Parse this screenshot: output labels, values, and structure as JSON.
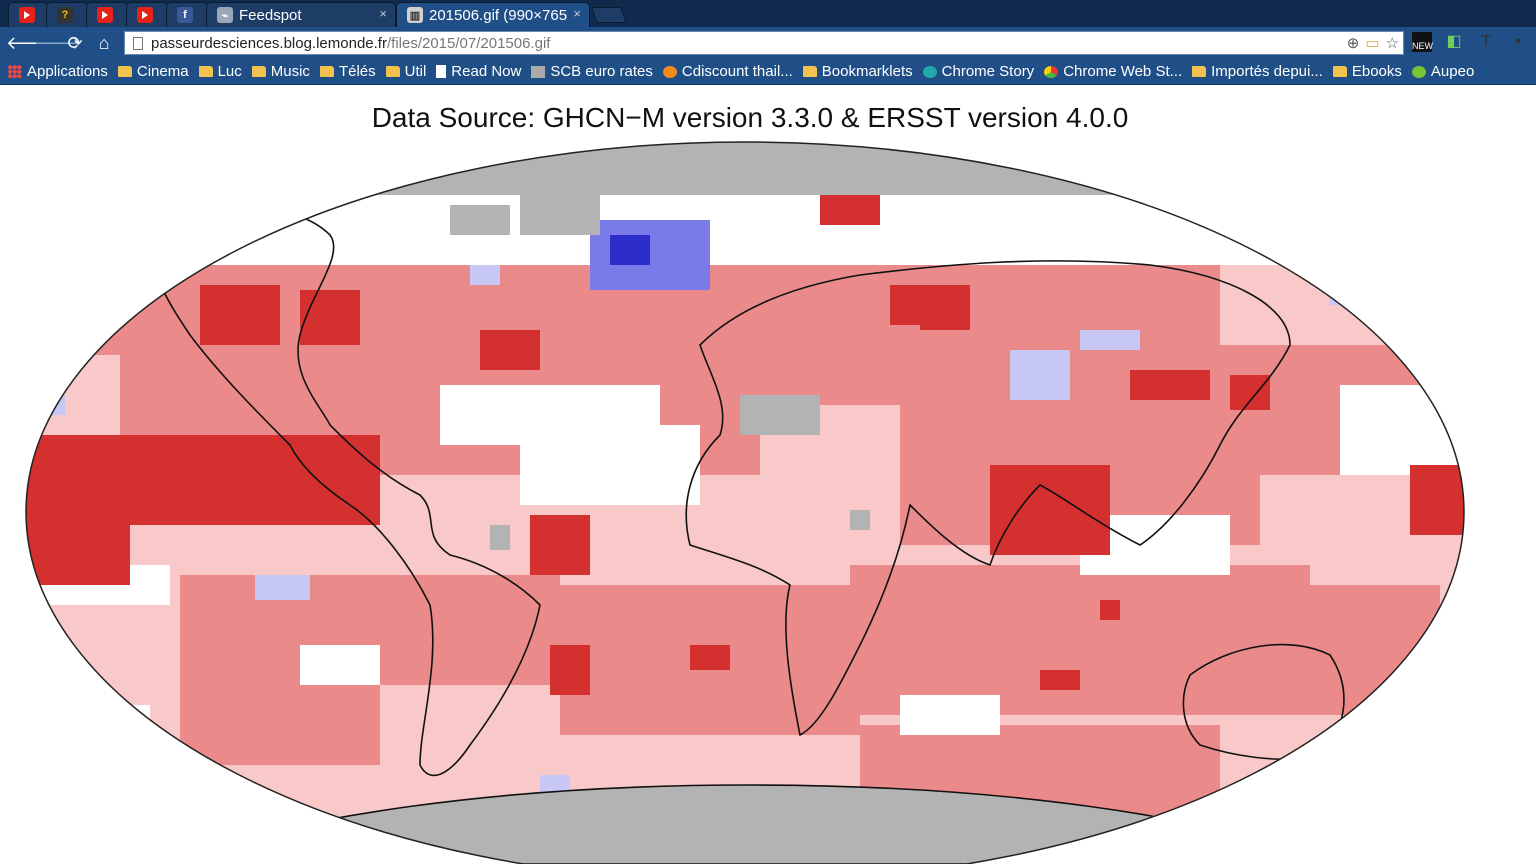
{
  "tabs": [
    {
      "icon": "youtube-icon",
      "title": "",
      "active": false
    },
    {
      "icon": "app-icon",
      "title": "",
      "active": false
    },
    {
      "icon": "youtube-icon",
      "title": "",
      "active": false
    },
    {
      "icon": "youtube-icon",
      "title": "",
      "active": false
    },
    {
      "icon": "facebook-icon",
      "title": "",
      "active": false
    },
    {
      "icon": "rss-icon",
      "title": "Feedspot",
      "active": false
    },
    {
      "icon": "image-icon",
      "title": "201506.gif (990×765",
      "active": true
    }
  ],
  "close_glyph": "×",
  "address": {
    "host": "passeurdesciences.blog.lemonde.fr",
    "path": "/files/2015/07/201506.gif"
  },
  "extension_badge": "NEW",
  "bookmarks": [
    {
      "label": "Applications",
      "icon": "apps-icon"
    },
    {
      "label": "Cinema",
      "icon": "folder-icon"
    },
    {
      "label": "Luc",
      "icon": "folder-icon"
    },
    {
      "label": "Music",
      "icon": "folder-icon"
    },
    {
      "label": "Télés",
      "icon": "folder-icon"
    },
    {
      "label": "Util",
      "icon": "folder-icon"
    },
    {
      "label": "Read Now",
      "icon": "page-icon"
    },
    {
      "label": "SCB euro rates",
      "icon": "scb-icon"
    },
    {
      "label": "Cdiscount thail...",
      "icon": "cdiscount-icon"
    },
    {
      "label": "Bookmarklets",
      "icon": "folder-icon"
    },
    {
      "label": "Chrome Story",
      "icon": "chrome-story-icon"
    },
    {
      "label": "Chrome Web St...",
      "icon": "chrome-web-store-icon"
    },
    {
      "label": "Importés depui...",
      "icon": "folder-icon"
    },
    {
      "label": "Ebooks",
      "icon": "folder-icon"
    },
    {
      "label": "Aupeo",
      "icon": "aupeo-icon"
    }
  ],
  "image": {
    "title": "Data Source: GHCN−M version 3.3.0 & ERSST version 4.0.0",
    "colors": {
      "ocean_missing": "#b3b3b3",
      "warm_light": "#f9c8c8",
      "warm_medium": "#ea8a8a",
      "warm_strong": "#d43030",
      "cool_light": "#c8c8f7",
      "cool_medium": "#7a7ae8",
      "cool_strong": "#2c2cc8"
    }
  }
}
